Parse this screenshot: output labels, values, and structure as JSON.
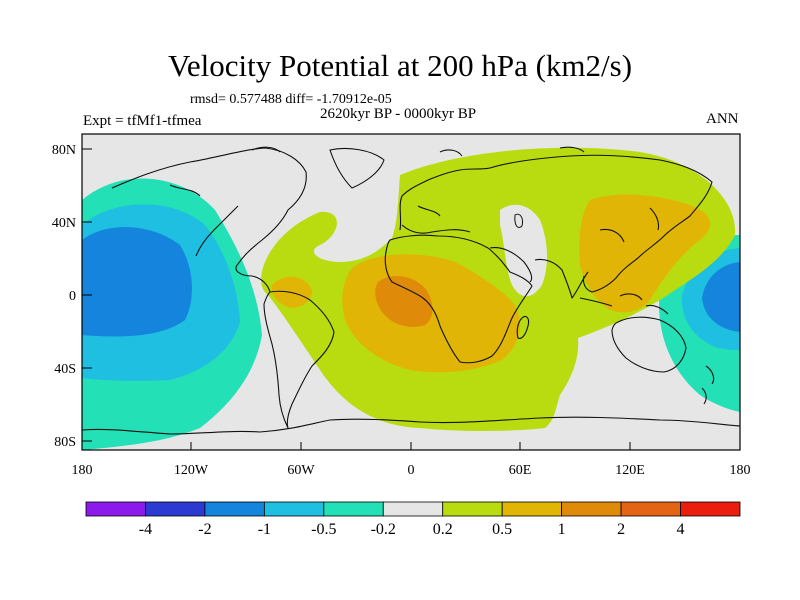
{
  "title": "Velocity Potential at 200 hPa (km2/s)",
  "stats": "rmsd= 0.577488 diff= -1.70912e-05",
  "period": "2620kyr BP - 0000kyr BP",
  "experiment": "Expt = tfMf1-tfmea",
  "season": "ANN",
  "latitude_labels": [
    "80N",
    "40N",
    "0",
    "40S",
    "80S"
  ],
  "longitude_labels": [
    "180",
    "120W",
    "60W",
    "0",
    "60E",
    "120E",
    "180"
  ],
  "colorbar": {
    "levels": [
      "-4",
      "-2",
      "-1",
      "-0.5",
      "-0.2",
      "0.2",
      "0.5",
      "1",
      "2",
      "4"
    ],
    "colors": [
      "#8c1aeb",
      "#2c3ad2",
      "#1584dd",
      "#1ebfe0",
      "#23e0b6",
      "#e6e6e6",
      "#b8dc10",
      "#e1b505",
      "#e08a09",
      "#e26414",
      "#ea1d0f"
    ]
  },
  "field_colors": {
    "neutral": "#e6e6e6",
    "weak_negative": "#23e0b6",
    "negative": "#1ebfe0",
    "moderate_negative": "#1584dd",
    "weak_positive": "#b8dc10",
    "positive": "#e1b505",
    "moderate_positive": "#e08a09"
  }
}
